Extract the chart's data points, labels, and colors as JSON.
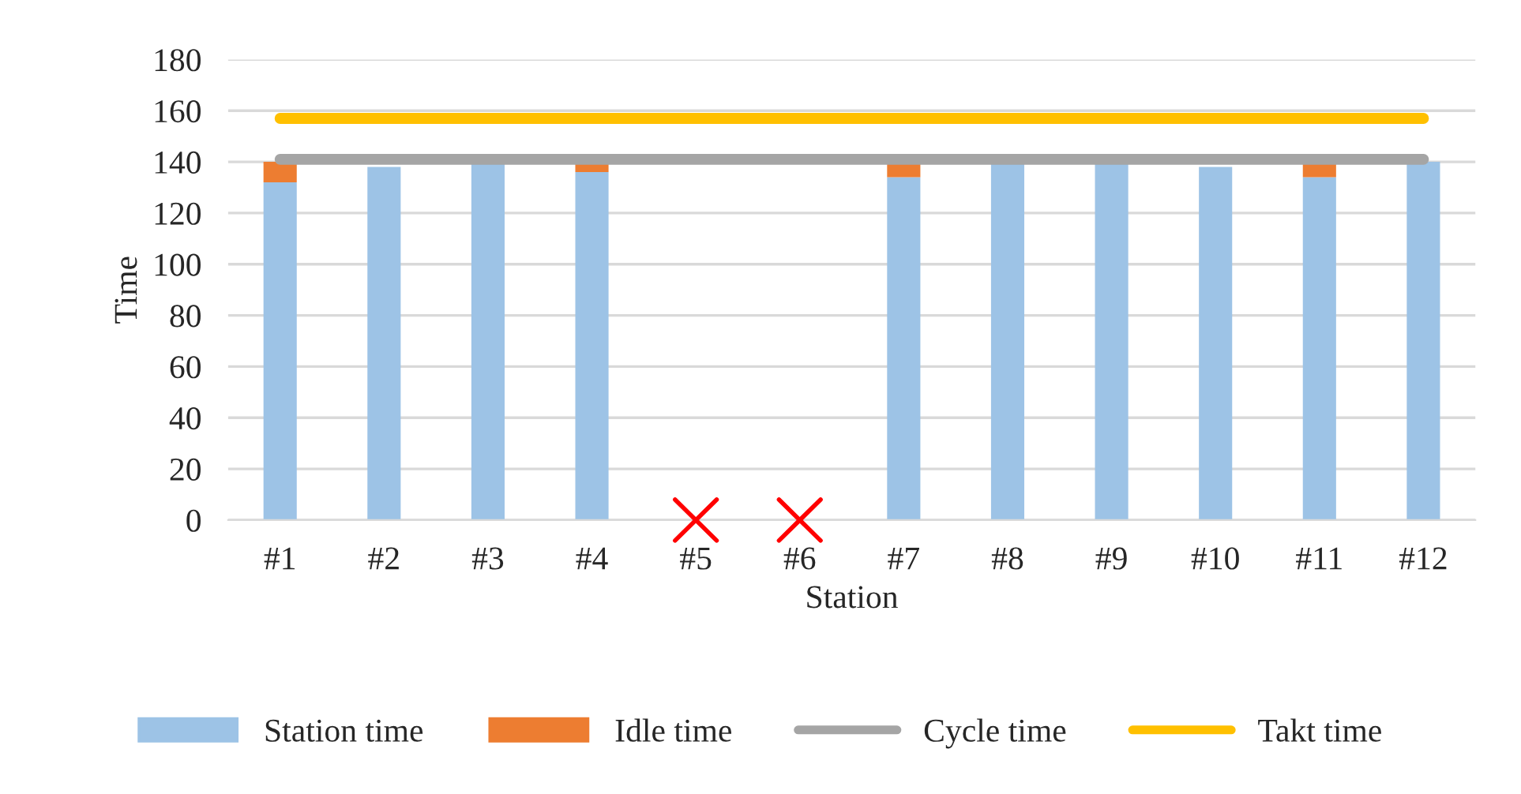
{
  "chart_data": {
    "type": "bar",
    "stacked": true,
    "xlabel": "Station",
    "ylabel": "Time",
    "categories": [
      "#1",
      "#2",
      "#3",
      "#4",
      "#5",
      "#6",
      "#7",
      "#8",
      "#9",
      "#10",
      "#11",
      "#12"
    ],
    "series": [
      {
        "name": "Station time",
        "color": "#9dc3e6",
        "values": [
          132,
          138,
          140,
          136,
          null,
          null,
          134,
          140,
          140,
          138,
          134,
          140
        ]
      },
      {
        "name": "Idle time",
        "color": "#ed7d31",
        "values": [
          8,
          0,
          0,
          4,
          null,
          null,
          6,
          0,
          0,
          0,
          6,
          0
        ]
      },
      {
        "name": "Cycle time",
        "type": "line",
        "color": "#a5a5a5",
        "values": [
          141,
          141,
          141,
          141,
          141,
          141,
          141,
          141,
          141,
          141,
          141,
          141
        ]
      },
      {
        "name": "Takt time",
        "type": "line",
        "color": "#ffc000",
        "values": [
          157,
          157,
          157,
          157,
          157,
          157,
          157,
          157,
          157,
          157,
          157,
          157
        ]
      }
    ],
    "ylim": [
      0,
      180
    ],
    "yticks": [
      0,
      20,
      40,
      60,
      80,
      100,
      120,
      140,
      160,
      180
    ],
    "grid": "y",
    "legend": "bottom"
  }
}
